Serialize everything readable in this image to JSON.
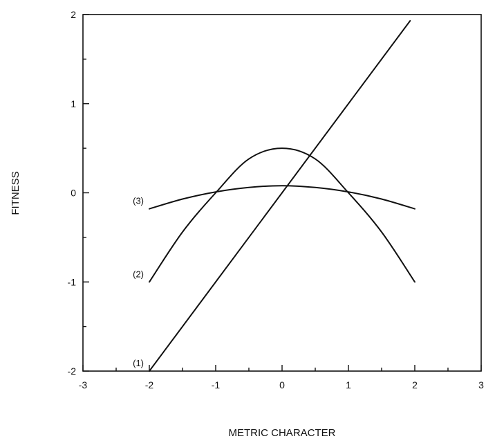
{
  "chart_data": {
    "type": "line",
    "title": "",
    "xlabel": "METRIC CHARACTER",
    "ylabel": "FITNESS",
    "xlim": [
      -3,
      3
    ],
    "ylim": [
      -2,
      2
    ],
    "x_major_ticks": [
      -3,
      -2,
      -1,
      0,
      1,
      2,
      3
    ],
    "y_major_ticks": [
      -2,
      -1,
      0,
      1,
      2
    ],
    "x_tick_labels": [
      "-3",
      "-2",
      "-1",
      "0",
      "1",
      "2",
      "3"
    ],
    "y_tick_labels": [
      "-2",
      "-1",
      "0",
      "1",
      "2"
    ],
    "grid": false,
    "series": [
      {
        "name": "(1)",
        "x": [
          -2,
          -1,
          0,
          1,
          1.93
        ],
        "y": [
          -2,
          -1,
          0,
          1,
          1.93
        ]
      },
      {
        "name": "(2)",
        "x": [
          -2,
          -1.5,
          -1,
          -0.5,
          0,
          0.5,
          1,
          1.5,
          2
        ],
        "y": [
          -1,
          -0.44,
          0,
          0.38,
          0.5,
          0.38,
          0,
          -0.44,
          -1
        ]
      },
      {
        "name": "(3)",
        "x": [
          -2,
          -1.5,
          -1,
          -0.5,
          0,
          0.5,
          1,
          1.5,
          2
        ],
        "y": [
          -0.18,
          -0.07,
          0.01,
          0.06,
          0.08,
          0.06,
          0.01,
          -0.07,
          -0.18
        ]
      }
    ]
  }
}
